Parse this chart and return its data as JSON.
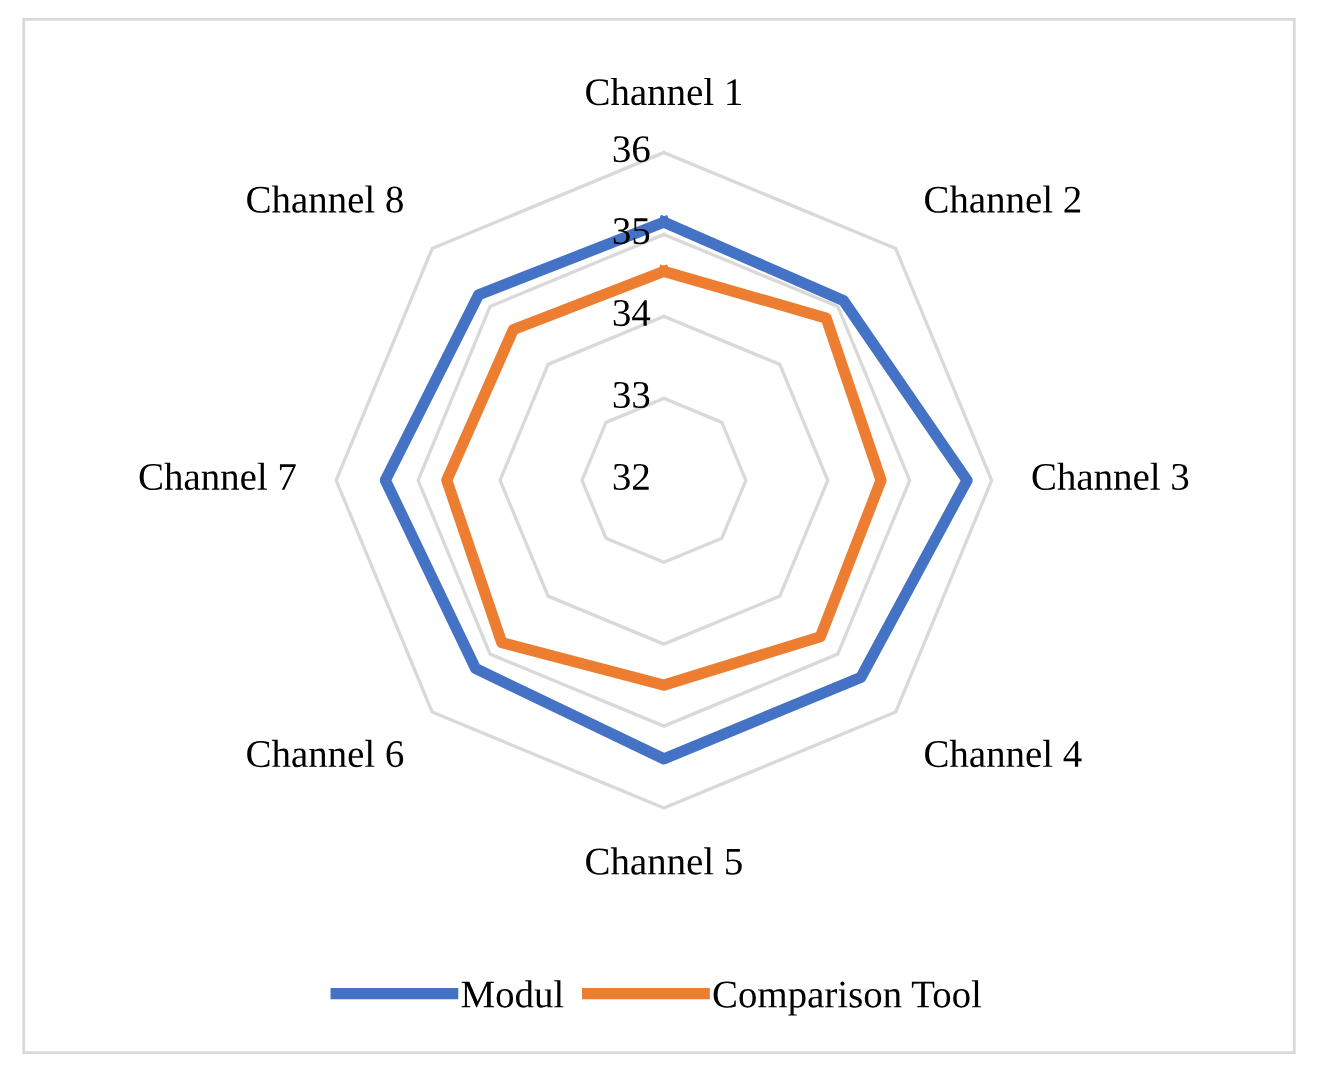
{
  "chart_data": {
    "type": "radar",
    "categories": [
      "Channel 1",
      "Channel 2",
      "Channel 3",
      "Channel 4",
      "Channel 5",
      "Channel 6",
      "Channel 7",
      "Channel 8"
    ],
    "series": [
      {
        "name": "Modul",
        "color": "#4472c4",
        "values": [
          35.15,
          35.1,
          35.7,
          35.4,
          35.4,
          35.25,
          35.4,
          35.2
        ]
      },
      {
        "name": "Comparison Tool",
        "color": "#ed7d31",
        "values": [
          34.55,
          34.8,
          34.65,
          34.7,
          34.5,
          34.8,
          34.65,
          34.6
        ]
      }
    ],
    "ylim": [
      32,
      36
    ],
    "yticks": [
      32,
      33,
      34,
      35,
      36
    ],
    "grid": true,
    "legend": "bottom"
  }
}
